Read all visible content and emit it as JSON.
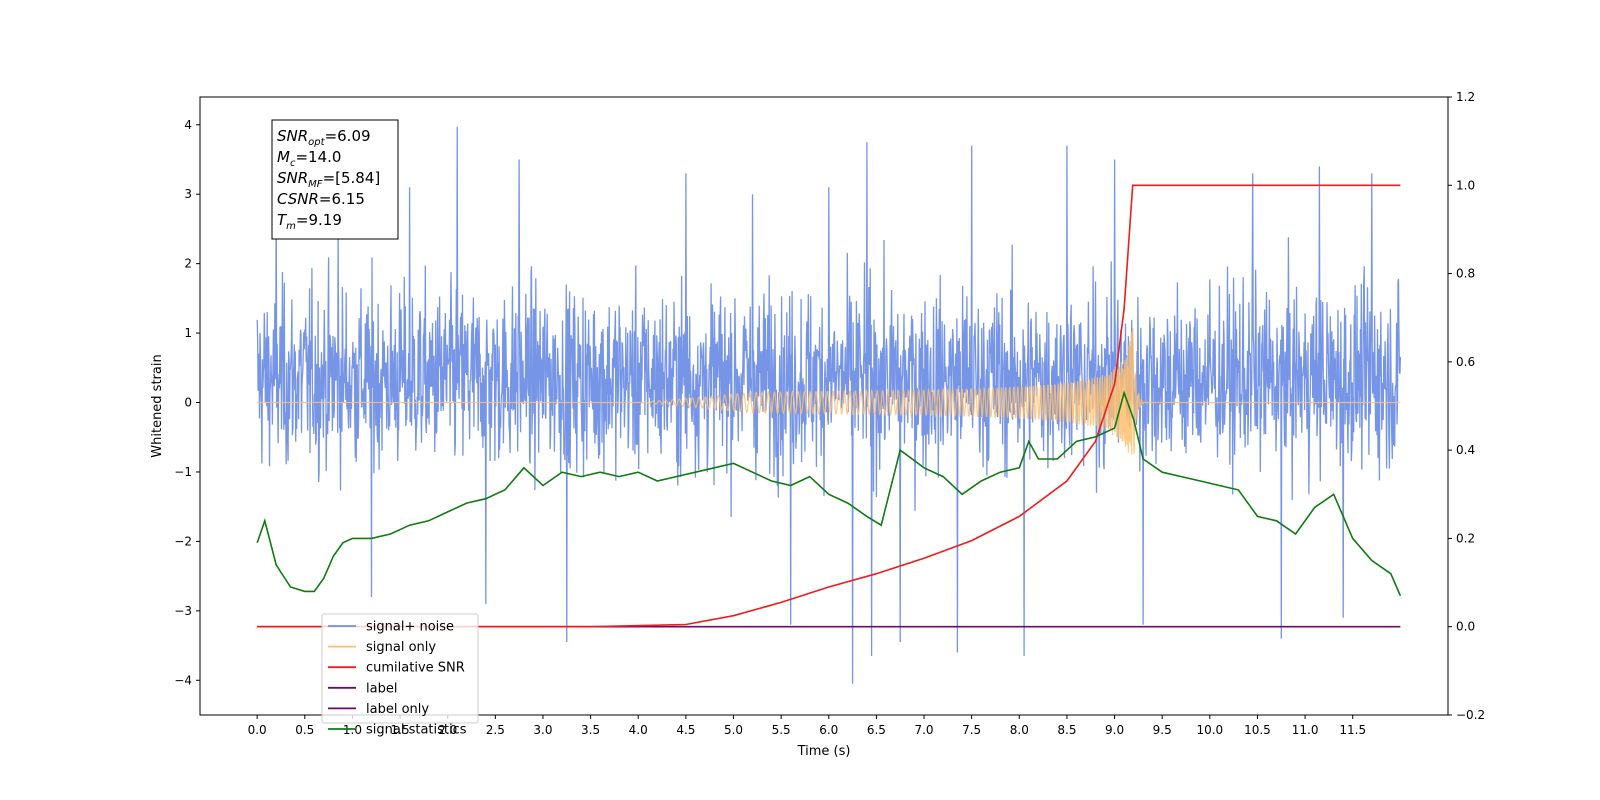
{
  "chart_data": {
    "type": "line",
    "xlabel": "Time (s)",
    "ylabel": "Whitened strain",
    "xlim": [
      -0.6,
      12.5
    ],
    "ylim": [
      -4.5,
      4.4
    ],
    "y2lim": [
      -0.2,
      1.2
    ],
    "x_ticks": [
      "0.0",
      "0.5",
      "1.0",
      "1.5",
      "2.0",
      "2.5",
      "3.0",
      "3.5",
      "4.0",
      "4.5",
      "5.0",
      "5.5",
      "6.0",
      "6.5",
      "7.0",
      "7.5",
      "8.0",
      "8.5",
      "9.0",
      "9.5",
      "10.0",
      "10.5",
      "11.0",
      "11.5"
    ],
    "y_ticks": [
      "4",
      "3",
      "2",
      "1",
      "0",
      "−1",
      "−2",
      "−3",
      "−4"
    ],
    "y2_ticks": [
      "1.2",
      "1.0",
      "0.8",
      "0.6",
      "0.4",
      "0.2",
      "0.0",
      "−0.2"
    ],
    "grid": false,
    "legend_position": "lower-left",
    "annotation": {
      "lines": [
        {
          "base": "SNR",
          "sub": "opt",
          "value": "=6.09"
        },
        {
          "base": "M",
          "sub": "c",
          "value": "=14.0"
        },
        {
          "base": "SNR",
          "sub": "MF",
          "value": "=[5.84]"
        },
        {
          "base": "CSNR",
          "sub": "",
          "value": "=6.15"
        },
        {
          "base": "T",
          "sub": "m",
          "value": "=9.19"
        }
      ]
    },
    "legend": [
      {
        "label": "signal+ noise",
        "color": "#6f8fe6"
      },
      {
        "label": "signal only",
        "color": "#ffbf6e"
      },
      {
        "label": "cumilative SNR",
        "color": "#ee1c1c"
      },
      {
        "label": "label",
        "color": "#6a0a6a"
      },
      {
        "label": "label only",
        "color": "#6a0a6a"
      },
      {
        "label": "signal statistics",
        "color": "#117a11"
      }
    ],
    "series": [
      {
        "name": "signal+ noise",
        "axis": "left",
        "color": "#6f8fe6",
        "x_range": [
          0.0,
          12.0
        ],
        "envelope": "noise, roughly -3.3 to 4.0",
        "spikes": [
          {
            "x": 0.2,
            "y": 3.1
          },
          {
            "x": 0.85,
            "y": 2.5
          },
          {
            "x": 1.2,
            "y": -2.8
          },
          {
            "x": 1.6,
            "y": 3.1
          },
          {
            "x": 2.1,
            "y": 3.97
          },
          {
            "x": 2.4,
            "y": -2.9
          },
          {
            "x": 2.75,
            "y": 3.5
          },
          {
            "x": 3.25,
            "y": -3.45
          },
          {
            "x": 4.5,
            "y": 3.3
          },
          {
            "x": 5.2,
            "y": 3.0
          },
          {
            "x": 5.6,
            "y": -3.2
          },
          {
            "x": 6.0,
            "y": 3.1
          },
          {
            "x": 6.25,
            "y": -4.05
          },
          {
            "x": 6.4,
            "y": 3.75
          },
          {
            "x": 6.45,
            "y": -3.65
          },
          {
            "x": 6.75,
            "y": -3.45
          },
          {
            "x": 7.35,
            "y": -3.6
          },
          {
            "x": 7.5,
            "y": 3.7
          },
          {
            "x": 8.05,
            "y": -3.65
          },
          {
            "x": 8.5,
            "y": 3.7
          },
          {
            "x": 9.0,
            "y": 3.5
          },
          {
            "x": 9.3,
            "y": -3.2
          },
          {
            "x": 10.45,
            "y": 3.3
          },
          {
            "x": 10.75,
            "y": -3.4
          },
          {
            "x": 11.15,
            "y": 3.4
          },
          {
            "x": 11.4,
            "y": -3.1
          },
          {
            "x": 11.7,
            "y": 3.3
          }
        ]
      },
      {
        "name": "signal only",
        "axis": "left",
        "color": "#ffbf6e",
        "chirp_start": 4.0,
        "merger_time": 9.19,
        "peak_amplitude": 1.25,
        "x_range": [
          0.0,
          12.0
        ]
      },
      {
        "name": "cumilative SNR",
        "axis": "right",
        "color": "#ee1c1c",
        "x": [
          0.0,
          3.5,
          4.5,
          5.0,
          5.5,
          6.0,
          6.5,
          7.0,
          7.5,
          8.0,
          8.5,
          8.8,
          9.0,
          9.1,
          9.19,
          12.0
        ],
        "values": [
          0.0,
          0.0,
          0.005,
          0.025,
          0.055,
          0.09,
          0.12,
          0.155,
          0.195,
          0.25,
          0.33,
          0.42,
          0.55,
          0.72,
          1.0,
          1.0
        ]
      },
      {
        "name": "label",
        "axis": "right",
        "color": "#6a0a6a",
        "x": [
          0.0,
          12.0
        ],
        "values": [
          0.0,
          0.0
        ]
      },
      {
        "name": "signal statistics",
        "axis": "right",
        "color": "#117a11",
        "x": [
          0.0,
          0.08,
          0.2,
          0.35,
          0.5,
          0.6,
          0.7,
          0.8,
          0.9,
          1.0,
          1.1,
          1.2,
          1.4,
          1.6,
          1.8,
          2.0,
          2.2,
          2.4,
          2.6,
          2.8,
          3.0,
          3.2,
          3.4,
          3.6,
          3.8,
          4.0,
          4.2,
          4.4,
          4.6,
          4.8,
          5.0,
          5.2,
          5.4,
          5.6,
          5.8,
          6.0,
          6.2,
          6.4,
          6.55,
          6.75,
          7.0,
          7.2,
          7.4,
          7.6,
          7.8,
          8.0,
          8.1,
          8.2,
          8.4,
          8.6,
          8.8,
          9.0,
          9.1,
          9.2,
          9.3,
          9.5,
          9.7,
          9.9,
          10.1,
          10.3,
          10.5,
          10.7,
          10.9,
          11.1,
          11.3,
          11.5,
          11.7,
          11.9,
          12.0
        ],
        "values": [
          0.19,
          0.24,
          0.14,
          0.09,
          0.08,
          0.08,
          0.11,
          0.16,
          0.19,
          0.2,
          0.2,
          0.2,
          0.21,
          0.23,
          0.24,
          0.26,
          0.28,
          0.29,
          0.31,
          0.36,
          0.32,
          0.35,
          0.34,
          0.35,
          0.34,
          0.35,
          0.33,
          0.34,
          0.35,
          0.36,
          0.37,
          0.35,
          0.33,
          0.32,
          0.34,
          0.3,
          0.28,
          0.25,
          0.23,
          0.4,
          0.36,
          0.34,
          0.3,
          0.33,
          0.35,
          0.36,
          0.42,
          0.38,
          0.38,
          0.42,
          0.43,
          0.45,
          0.53,
          0.47,
          0.38,
          0.35,
          0.34,
          0.33,
          0.32,
          0.31,
          0.25,
          0.24,
          0.21,
          0.27,
          0.3,
          0.2,
          0.15,
          0.12,
          0.07
        ]
      }
    ]
  }
}
